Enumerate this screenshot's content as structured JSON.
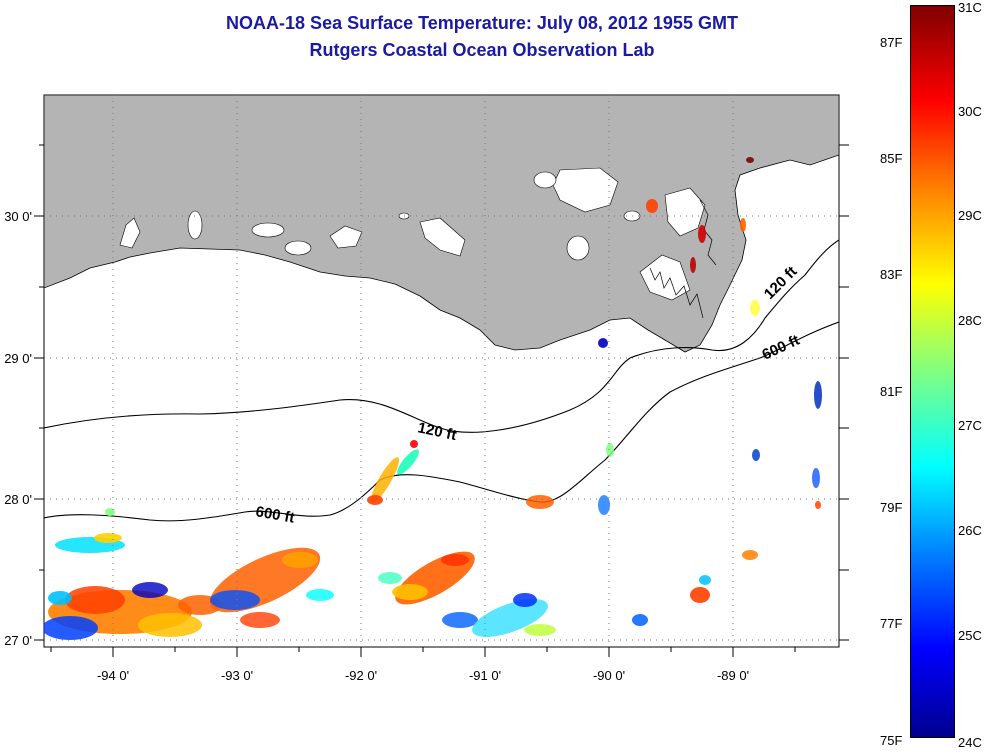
{
  "title": {
    "line1": "NOAA-18 Sea Surface Temperature:  July 08, 2012 1955 GMT",
    "line2": "Rutgers Coastal Ocean Observation Lab"
  },
  "axes": {
    "x_ticks": [
      {
        "lon": -94,
        "label": "-94 0'"
      },
      {
        "lon": -93,
        "label": "-93 0'"
      },
      {
        "lon": -92,
        "label": "-92 0'"
      },
      {
        "lon": -91,
        "label": "-91 0'"
      },
      {
        "lon": -90,
        "label": "-90 0'"
      },
      {
        "lon": -89,
        "label": "-89 0'"
      }
    ],
    "y_ticks": [
      {
        "lat": 30,
        "label": "30 0'"
      },
      {
        "lat": 29,
        "label": "29 0'"
      },
      {
        "lat": 28,
        "label": "28 0'"
      },
      {
        "lat": 27,
        "label": "27 0'"
      }
    ]
  },
  "contours": {
    "c120": "120 ft",
    "c600": "600 ft",
    "c120_east": "120 ft",
    "c600_east": "600 ft"
  },
  "colorbar": {
    "fahrenheit": [
      "87F",
      "85F",
      "83F",
      "81F",
      "79F",
      "77F",
      "75F"
    ],
    "celsius": [
      "31C",
      "30C",
      "29C",
      "28C",
      "27C",
      "26C",
      "25C",
      "24C"
    ]
  },
  "colors": {
    "land": "#b4b4b4",
    "title": "#1a1aa6",
    "sst_low": "#00008f",
    "sst_mid": "#80ff80",
    "sst_high": "#800000"
  }
}
